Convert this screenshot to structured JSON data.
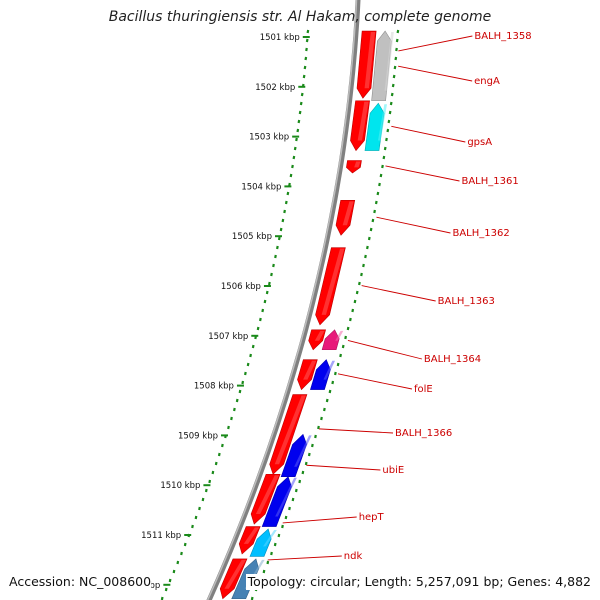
{
  "title": "Bacillus thuringiensis str. Al Hakam, complete genome",
  "footer": {
    "accession": "Accession: NC_008600",
    "summary": "Topology: circular; Length: 5,257,091 bp; Genes: 4,882"
  },
  "ticks": [
    {
      "label": "1501 kbp",
      "kbp": 1501
    },
    {
      "label": "1502 kbp",
      "kbp": 1502
    },
    {
      "label": "1503 kbp",
      "kbp": 1503
    },
    {
      "label": "1504 kbp",
      "kbp": 1504
    },
    {
      "label": "1505 kbp",
      "kbp": 1505
    },
    {
      "label": "1506 kbp",
      "kbp": 1506
    },
    {
      "label": "1507 kbp",
      "kbp": 1507
    },
    {
      "label": "1508 kbp",
      "kbp": 1508
    },
    {
      "label": "1509 kbp",
      "kbp": 1509
    },
    {
      "label": "1510 kbp",
      "kbp": 1510
    },
    {
      "label": "1511 kbp",
      "kbp": 1511
    },
    {
      "label": "1512 kbp",
      "kbp": 1512
    }
  ],
  "gene_labels": [
    {
      "name": "BALH_1358",
      "start_kbp": 1500.9,
      "end_kbp": 1502.25
    },
    {
      "name": "engA",
      "start_kbp": 1500.95,
      "end_kbp": 1502.3
    },
    {
      "name": "gpsA",
      "start_kbp": 1502.35,
      "end_kbp": 1503.3
    },
    {
      "name": "BALH_1361",
      "start_kbp": 1503.5,
      "end_kbp": 1503.75
    },
    {
      "name": "BALH_1362",
      "start_kbp": 1504.3,
      "end_kbp": 1505.0
    },
    {
      "name": "BALH_1363",
      "start_kbp": 1505.25,
      "end_kbp": 1506.8
    },
    {
      "name": "BALH_1364",
      "start_kbp": 1506.9,
      "end_kbp": 1507.3
    },
    {
      "name": "folE",
      "start_kbp": 1507.5,
      "end_kbp": 1508.1
    },
    {
      "name": "BALH_1366",
      "start_kbp": 1508.2,
      "end_kbp": 1509.8
    },
    {
      "name": "ubiE",
      "start_kbp": 1509.0,
      "end_kbp": 1510.45
    },
    {
      "name": "hepT",
      "start_kbp": 1510.45,
      "end_kbp": 1511.5
    },
    {
      "name": "ndk",
      "start_kbp": 1511.45,
      "end_kbp": 1511.95
    }
  ],
  "genes_plus_strand": [
    {
      "start_kbp": 1500.9,
      "end_kbp": 1502.3,
      "color": "#c0c0c0"
    },
    {
      "start_kbp": 1502.35,
      "end_kbp": 1503.3,
      "color": "#00e5ee"
    },
    {
      "start_kbp": 1506.9,
      "end_kbp": 1507.3,
      "color": "#e8197a"
    },
    {
      "start_kbp": 1507.5,
      "end_kbp": 1508.1,
      "color": "#0000ee"
    },
    {
      "start_kbp": 1509.0,
      "end_kbp": 1509.85,
      "color": "#0000ee"
    },
    {
      "start_kbp": 1509.85,
      "end_kbp": 1510.85,
      "color": "#0000ee"
    },
    {
      "start_kbp": 1510.9,
      "end_kbp": 1511.45,
      "color": "#00bfff"
    },
    {
      "start_kbp": 1511.5,
      "end_kbp": 1512.3,
      "color": "#4682b4"
    }
  ],
  "genes_minus_strand": [
    {
      "start_kbp": 1500.9,
      "end_kbp": 1502.25,
      "color": "#ff0000"
    },
    {
      "start_kbp": 1502.3,
      "end_kbp": 1503.3,
      "color": "#ff0000"
    },
    {
      "start_kbp": 1503.5,
      "end_kbp": 1503.75,
      "color": "#ff0000"
    },
    {
      "start_kbp": 1504.3,
      "end_kbp": 1505.0,
      "color": "#ff0000"
    },
    {
      "start_kbp": 1505.25,
      "end_kbp": 1506.8,
      "color": "#ff0000"
    },
    {
      "start_kbp": 1506.9,
      "end_kbp": 1507.3,
      "color": "#ff0000"
    },
    {
      "start_kbp": 1507.5,
      "end_kbp": 1508.1,
      "color": "#ff0000"
    },
    {
      "start_kbp": 1508.2,
      "end_kbp": 1509.8,
      "color": "#ff0000"
    },
    {
      "start_kbp": 1509.8,
      "end_kbp": 1510.8,
      "color": "#ff0000"
    },
    {
      "start_kbp": 1510.85,
      "end_kbp": 1511.4,
      "color": "#ff0000"
    },
    {
      "start_kbp": 1511.5,
      "end_kbp": 1512.3,
      "color": "#ff0000"
    }
  ],
  "colors": {
    "backbone": "#808080",
    "ruler_dots": "#1a8a1a",
    "label_text": "#cc0000",
    "label_line": "#cc0000"
  }
}
